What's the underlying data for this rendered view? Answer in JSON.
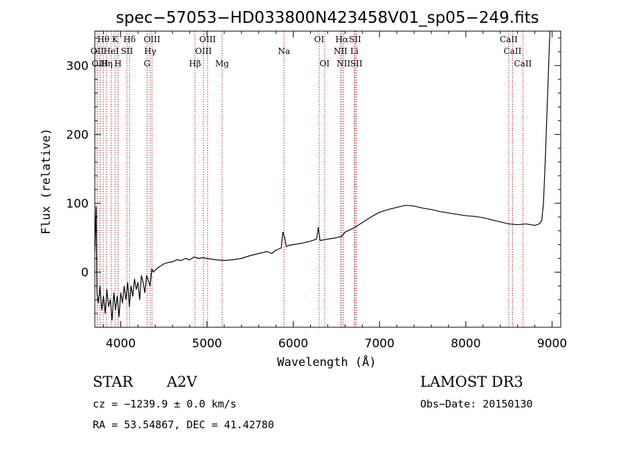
{
  "chart_data": {
    "type": "line",
    "title": "spec−57053−HD033800N423458V01_sp05−249.fits",
    "xlabel": "Wavelength (Å)",
    "ylabel": "Flux (relative)",
    "xlim": [
      3700,
      9100
    ],
    "ylim": [
      -80,
      350
    ],
    "xticks": [
      {
        "value": 4000,
        "label": "4000"
      },
      {
        "value": 5000,
        "label": "5000"
      },
      {
        "value": 6000,
        "label": "6000"
      },
      {
        "value": 7000,
        "label": "7000"
      },
      {
        "value": 8000,
        "label": "8000"
      },
      {
        "value": 9000,
        "label": "9000"
      }
    ],
    "yticks": [
      {
        "value": 0,
        "label": "0"
      },
      {
        "value": 100,
        "label": "100"
      },
      {
        "value": 200,
        "label": "200"
      },
      {
        "value": 300,
        "label": "300"
      }
    ],
    "line_color": "#000000",
    "marker_color": "#b22222",
    "series": [
      {
        "name": "flux",
        "points": [
          [
            3700,
            30
          ],
          [
            3715,
            95
          ],
          [
            3725,
            -30
          ],
          [
            3740,
            -45
          ],
          [
            3760,
            -20
          ],
          [
            3780,
            -55
          ],
          [
            3800,
            -35
          ],
          [
            3820,
            -60
          ],
          [
            3840,
            -25
          ],
          [
            3860,
            -50
          ],
          [
            3880,
            -40
          ],
          [
            3900,
            -70
          ],
          [
            3920,
            -30
          ],
          [
            3940,
            -55
          ],
          [
            3960,
            -35
          ],
          [
            3980,
            -65
          ],
          [
            4000,
            -30
          ],
          [
            4020,
            -45
          ],
          [
            4040,
            -20
          ],
          [
            4060,
            -40
          ],
          [
            4080,
            -15
          ],
          [
            4100,
            -50
          ],
          [
            4120,
            -20
          ],
          [
            4140,
            -35
          ],
          [
            4160,
            -10
          ],
          [
            4180,
            -25
          ],
          [
            4200,
            -15
          ],
          [
            4220,
            -40
          ],
          [
            4240,
            -5
          ],
          [
            4260,
            -15
          ],
          [
            4280,
            -30
          ],
          [
            4300,
            -5
          ],
          [
            4320,
            -12
          ],
          [
            4340,
            -20
          ],
          [
            4360,
            5
          ],
          [
            4380,
            0
          ],
          [
            4400,
            3
          ],
          [
            4450,
            8
          ],
          [
            4500,
            12
          ],
          [
            4550,
            14
          ],
          [
            4600,
            15
          ],
          [
            4650,
            18
          ],
          [
            4700,
            17
          ],
          [
            4750,
            20
          ],
          [
            4800,
            18
          ],
          [
            4850,
            22
          ],
          [
            4900,
            20
          ],
          [
            4950,
            21
          ],
          [
            5000,
            20
          ],
          [
            5100,
            18
          ],
          [
            5200,
            17
          ],
          [
            5300,
            18
          ],
          [
            5400,
            20
          ],
          [
            5500,
            24
          ],
          [
            5600,
            27
          ],
          [
            5700,
            30
          ],
          [
            5750,
            27
          ],
          [
            5800,
            32
          ],
          [
            5860,
            35
          ],
          [
            5880,
            58
          ],
          [
            5900,
            50
          ],
          [
            5920,
            37
          ],
          [
            5950,
            39
          ],
          [
            6000,
            40
          ],
          [
            6100,
            42
          ],
          [
            6200,
            45
          ],
          [
            6270,
            48
          ],
          [
            6290,
            65
          ],
          [
            6310,
            46
          ],
          [
            6400,
            48
          ],
          [
            6500,
            50
          ],
          [
            6563,
            52
          ],
          [
            6600,
            58
          ],
          [
            6700,
            64
          ],
          [
            6800,
            72
          ],
          [
            6900,
            80
          ],
          [
            7000,
            87
          ],
          [
            7100,
            91
          ],
          [
            7200,
            94
          ],
          [
            7300,
            97
          ],
          [
            7400,
            96
          ],
          [
            7500,
            93
          ],
          [
            7600,
            91
          ],
          [
            7700,
            88
          ],
          [
            7800,
            86
          ],
          [
            7900,
            84
          ],
          [
            8000,
            82
          ],
          [
            8100,
            81
          ],
          [
            8200,
            79
          ],
          [
            8300,
            76
          ],
          [
            8400,
            73
          ],
          [
            8500,
            70
          ],
          [
            8600,
            69
          ],
          [
            8700,
            70
          ],
          [
            8800,
            68
          ],
          [
            8850,
            70
          ],
          [
            8880,
            75
          ],
          [
            8900,
            100
          ],
          [
            8920,
            160
          ],
          [
            8940,
            230
          ],
          [
            8960,
            300
          ],
          [
            8975,
            350
          ]
        ]
      }
    ],
    "line_markers": [
      {
        "name": "Hθ",
        "wavelength": 3798,
        "row": 1
      },
      {
        "name": "OII",
        "wavelength": 3727,
        "row": 2
      },
      {
        "name": "OIII",
        "wavelength": 3760,
        "row": 3
      },
      {
        "name": "Hη",
        "wavelength": 3835,
        "row": 3
      },
      {
        "name": "HeI",
        "wavelength": 3889,
        "row": 2
      },
      {
        "name": "K",
        "wavelength": 3934,
        "row": 1
      },
      {
        "name": "H",
        "wavelength": 3969,
        "row": 3
      },
      {
        "name": "SII",
        "wavelength": 4072,
        "row": 2
      },
      {
        "name": "Hδ",
        "wavelength": 4102,
        "row": 1
      },
      {
        "name": "OIII",
        "wavelength": 4363,
        "row": 1
      },
      {
        "name": "Hγ",
        "wavelength": 4341,
        "row": 2
      },
      {
        "name": "G",
        "wavelength": 4305,
        "row": 3
      },
      {
        "name": "Hβ",
        "wavelength": 4861,
        "row": 3
      },
      {
        "name": "OIII",
        "wavelength": 4959,
        "row": 2
      },
      {
        "name": "OIII",
        "wavelength": 5007,
        "row": 1
      },
      {
        "name": "Mg",
        "wavelength": 5175,
        "row": 3
      },
      {
        "name": "Na",
        "wavelength": 5893,
        "row": 2
      },
      {
        "name": "OI",
        "wavelength": 6300,
        "row": 1
      },
      {
        "name": "OI",
        "wavelength": 6364,
        "row": 3
      },
      {
        "name": "NII",
        "wavelength": 6548,
        "row": 2
      },
      {
        "name": "NII",
        "wavelength": 6583,
        "row": 3
      },
      {
        "name": "Hα",
        "wavelength": 6563,
        "row": 1
      },
      {
        "name": "SII",
        "wavelength": 6716,
        "row": 1
      },
      {
        "name": "Li",
        "wavelength": 6708,
        "row": 2
      },
      {
        "name": "SII",
        "wavelength": 6731,
        "row": 3
      },
      {
        "name": "CaII",
        "wavelength": 8498,
        "row": 1
      },
      {
        "name": "CaII",
        "wavelength": 8542,
        "row": 2
      },
      {
        "name": "CaII",
        "wavelength": 8662,
        "row": 3
      }
    ]
  },
  "info": {
    "object_class": "STAR",
    "subclass": "A2V",
    "survey": "LAMOST DR3",
    "cz": "cz = −1239.9 ± 0.0 km/s",
    "obs_date": "Obs−Date: 20150130",
    "coords": "RA =  53.54867, DEC =  41.42780"
  }
}
